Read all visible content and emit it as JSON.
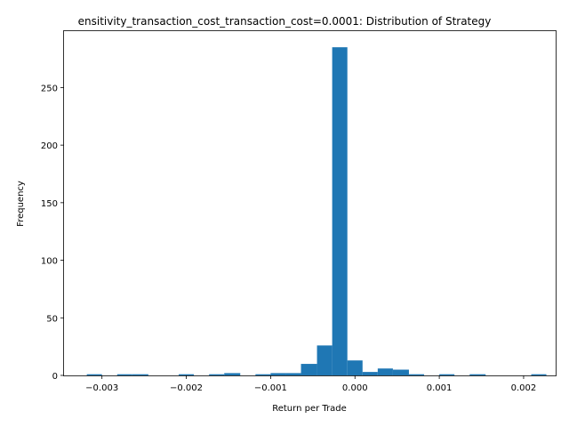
{
  "chart_data": {
    "type": "bar",
    "title": "ensitivity_transaction_cost_transaction_cost=0.0001: Distribution of Strategy",
    "xlabel": "Return per Trade",
    "ylabel": "Frequency",
    "xlim": [
      -0.00345,
      0.00238
    ],
    "ylim": [
      0,
      299
    ],
    "x_ticks": [
      -0.003,
      -0.002,
      -0.001,
      0.0,
      0.001,
      0.002
    ],
    "x_tick_labels": [
      "−0.003",
      "−0.002",
      "−0.001",
      "0.000",
      "0.001",
      "0.002"
    ],
    "y_ticks": [
      0,
      50,
      100,
      150,
      200,
      250
    ],
    "y_tick_labels": [
      "0",
      "50",
      "100",
      "150",
      "200",
      "250"
    ],
    "bar_color": "#1f77b4",
    "grid": false,
    "bins": [
      {
        "x0": -0.00318,
        "x1": -0.003,
        "count": 1
      },
      {
        "x0": -0.003,
        "x1": -0.00282,
        "count": 0
      },
      {
        "x0": -0.00282,
        "x1": -0.00264,
        "count": 1
      },
      {
        "x0": -0.00264,
        "x1": -0.00245,
        "count": 1
      },
      {
        "x0": -0.00245,
        "x1": -0.00227,
        "count": 0
      },
      {
        "x0": -0.00227,
        "x1": -0.00209,
        "count": 0
      },
      {
        "x0": -0.00209,
        "x1": -0.00191,
        "count": 1
      },
      {
        "x0": -0.00191,
        "x1": -0.00173,
        "count": 0
      },
      {
        "x0": -0.00173,
        "x1": -0.00155,
        "count": 1
      },
      {
        "x0": -0.00155,
        "x1": -0.00136,
        "count": 2
      },
      {
        "x0": -0.00136,
        "x1": -0.00118,
        "count": 0
      },
      {
        "x0": -0.00118,
        "x1": -0.001,
        "count": 1
      },
      {
        "x0": -0.001,
        "x1": -0.00082,
        "count": 2
      },
      {
        "x0": -0.00082,
        "x1": -0.00064,
        "count": 2
      },
      {
        "x0": -0.00064,
        "x1": -0.00045,
        "count": 10
      },
      {
        "x0": -0.00045,
        "x1": -0.00027,
        "count": 26
      },
      {
        "x0": -0.00027,
        "x1": -9e-05,
        "count": 285
      },
      {
        "x0": -9e-05,
        "x1": 9e-05,
        "count": 13
      },
      {
        "x0": 9e-05,
        "x1": 0.00027,
        "count": 3
      },
      {
        "x0": 0.00027,
        "x1": 0.00045,
        "count": 6
      },
      {
        "x0": 0.00045,
        "x1": 0.00064,
        "count": 5
      },
      {
        "x0": 0.00064,
        "x1": 0.00082,
        "count": 1
      },
      {
        "x0": 0.00082,
        "x1": 0.001,
        "count": 0
      },
      {
        "x0": 0.001,
        "x1": 0.00118,
        "count": 1
      },
      {
        "x0": 0.00118,
        "x1": 0.00136,
        "count": 0
      },
      {
        "x0": 0.00136,
        "x1": 0.00155,
        "count": 1
      },
      {
        "x0": 0.00155,
        "x1": 0.00173,
        "count": 0
      },
      {
        "x0": 0.00173,
        "x1": 0.00191,
        "count": 0
      },
      {
        "x0": 0.00191,
        "x1": 0.00209,
        "count": 0
      },
      {
        "x0": 0.00209,
        "x1": 0.00227,
        "count": 1
      }
    ]
  }
}
